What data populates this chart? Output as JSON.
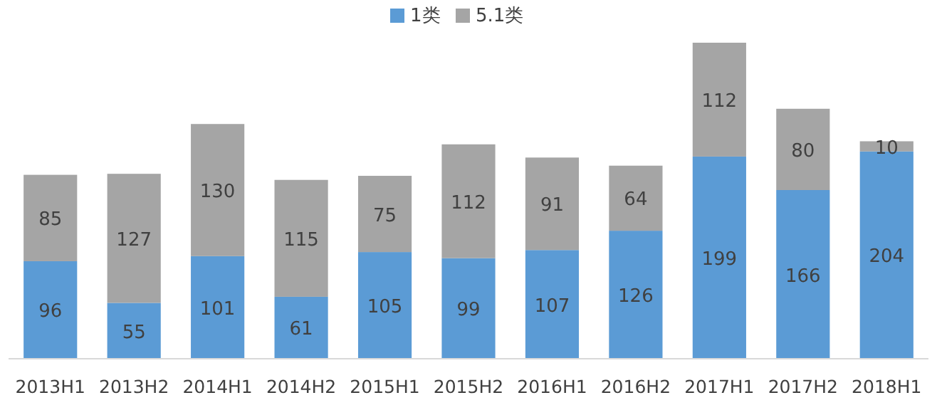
{
  "chart_data": {
    "type": "bar",
    "stacked": true,
    "data_labels": true,
    "legend": "top",
    "categories": [
      "2013H1",
      "2013H2",
      "2014H1",
      "2014H2",
      "2015H1",
      "2015H2",
      "2016H1",
      "2016H2",
      "2017H1",
      "2017H2",
      "2018H1"
    ],
    "series": [
      {
        "name": "1类",
        "color": "#5b9bd5",
        "values": [
          96,
          55,
          101,
          61,
          105,
          99,
          107,
          126,
          199,
          166,
          204
        ]
      },
      {
        "name": "5.1类",
        "color": "#a5a5a5",
        "values": [
          85,
          127,
          130,
          115,
          75,
          112,
          91,
          64,
          112,
          80,
          10
        ]
      }
    ]
  }
}
